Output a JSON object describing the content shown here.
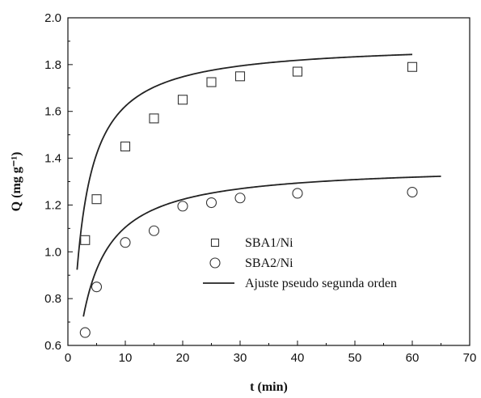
{
  "chart_data": {
    "type": "scatter",
    "title": "",
    "xlabel": "t (min)",
    "ylabel": "Q (mg g⁻¹)",
    "xlim": [
      0,
      70
    ],
    "ylim": [
      0.6,
      2.0
    ],
    "x_ticks": [
      0,
      10,
      20,
      30,
      40,
      50,
      60,
      70
    ],
    "x_tick_labels": [
      "0",
      "10",
      "20",
      "30",
      "40",
      "50",
      "60",
      "70"
    ],
    "y_ticks": [
      0.6,
      0.8,
      1.0,
      1.2,
      1.4,
      1.6,
      1.8,
      2.0
    ],
    "y_tick_labels": [
      "0.6",
      "0.8",
      "1.0",
      "1.2",
      "1.4",
      "1.6",
      "1.8",
      "2.0"
    ],
    "grid": false,
    "legend_position": "center-right",
    "series": [
      {
        "name": "SBA1/Ni",
        "marker": "square",
        "x": [
          3,
          5,
          10,
          15,
          20,
          25,
          30,
          40,
          60
        ],
        "y": [
          1.05,
          1.225,
          1.45,
          1.57,
          1.65,
          1.725,
          1.75,
          1.77,
          1.79
        ]
      },
      {
        "name": "SBA2/Ni",
        "marker": "circle",
        "x": [
          3,
          5,
          10,
          15,
          20,
          25,
          30,
          40,
          60
        ],
        "y": [
          0.655,
          0.85,
          1.04,
          1.09,
          1.195,
          1.21,
          1.23,
          1.25,
          1.255
        ]
      },
      {
        "name": "Ajuste pseudo segunda orden",
        "type": "line",
        "fits": [
          {
            "for": "SBA1/Ni",
            "model": "pseudo-second-order",
            "qe": 1.895,
            "k": 0.3135,
            "x_range": [
              1.6,
              60
            ]
          },
          {
            "for": "SBA2/Ni",
            "model": "pseudo-second-order",
            "qe": 1.372,
            "k": 0.3011,
            "x_range": [
              2.7,
              65
            ]
          }
        ]
      }
    ],
    "legend": {
      "entries": [
        "SBA1/Ni",
        "SBA2/Ni",
        "Ajuste pseudo segunda orden"
      ]
    }
  },
  "style": {
    "line_color": "#222222",
    "marker_color": "#333333",
    "axis_color": "#111111"
  }
}
